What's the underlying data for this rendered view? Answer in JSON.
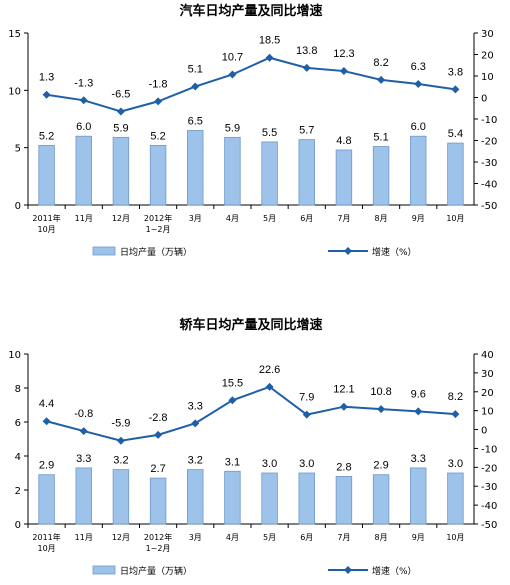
{
  "colors": {
    "bar_fill": "#9ec3ea",
    "bar_stroke": "#6f98c8",
    "line": "#1f5fa8",
    "axis": "#000000"
  },
  "chart_data": [
    {
      "type": "bar",
      "title": "汽车日均产量及同比增速",
      "categories": [
        [
          "2011年",
          "10月"
        ],
        [
          "11月"
        ],
        [
          "12月"
        ],
        [
          "2012年",
          "1~2月"
        ],
        [
          "3月"
        ],
        [
          "4月"
        ],
        [
          "5月"
        ],
        [
          "6月"
        ],
        [
          "7月"
        ],
        [
          "8月"
        ],
        [
          "9月"
        ],
        [
          "10月"
        ]
      ],
      "series": [
        {
          "name": "日均产量（万辆）",
          "type": "bar",
          "axis": "left",
          "values": [
            5.2,
            6.0,
            5.9,
            5.2,
            6.5,
            5.9,
            5.5,
            5.7,
            4.8,
            5.1,
            6.0,
            5.4
          ]
        },
        {
          "name": "增速（%）",
          "type": "line",
          "axis": "right",
          "values": [
            1.3,
            -1.3,
            -6.5,
            -1.8,
            5.1,
            10.7,
            18.5,
            13.8,
            12.3,
            8.2,
            6.3,
            3.8
          ]
        }
      ],
      "ylim_left": [
        0,
        15
      ],
      "yticks_left": [
        0,
        5,
        10,
        15
      ],
      "ylim_right": [
        -50,
        30
      ],
      "yticks_right": [
        30,
        20,
        10,
        0,
        -10,
        -20,
        -30,
        -40,
        -50
      ],
      "legend_position": "bottom"
    },
    {
      "type": "bar",
      "title": "轿车日均产量及同比增速",
      "categories": [
        [
          "2011年",
          "10月"
        ],
        [
          "11月"
        ],
        [
          "12月"
        ],
        [
          "2012年",
          "1~2月"
        ],
        [
          "3月"
        ],
        [
          "4月"
        ],
        [
          "5月"
        ],
        [
          "6月"
        ],
        [
          "7月"
        ],
        [
          "8月"
        ],
        [
          "9月"
        ],
        [
          "10月"
        ]
      ],
      "series": [
        {
          "name": "日均产量（万辆）",
          "type": "bar",
          "axis": "left",
          "values": [
            2.9,
            3.3,
            3.2,
            2.7,
            3.2,
            3.1,
            3.0,
            3.0,
            2.8,
            2.9,
            3.3,
            3.0
          ]
        },
        {
          "name": "增速（%）",
          "type": "line",
          "axis": "right",
          "values": [
            4.4,
            -0.8,
            -5.9,
            -2.8,
            3.3,
            15.5,
            22.6,
            7.9,
            12.1,
            10.8,
            9.6,
            8.2
          ]
        }
      ],
      "ylim_left": [
        0,
        10
      ],
      "yticks_left": [
        0,
        2,
        4,
        6,
        8,
        10
      ],
      "ylim_right": [
        -50,
        40
      ],
      "yticks_right": [
        40,
        30,
        20,
        10,
        0,
        -10,
        -20,
        -30,
        -40,
        -50
      ],
      "legend_position": "bottom"
    }
  ]
}
